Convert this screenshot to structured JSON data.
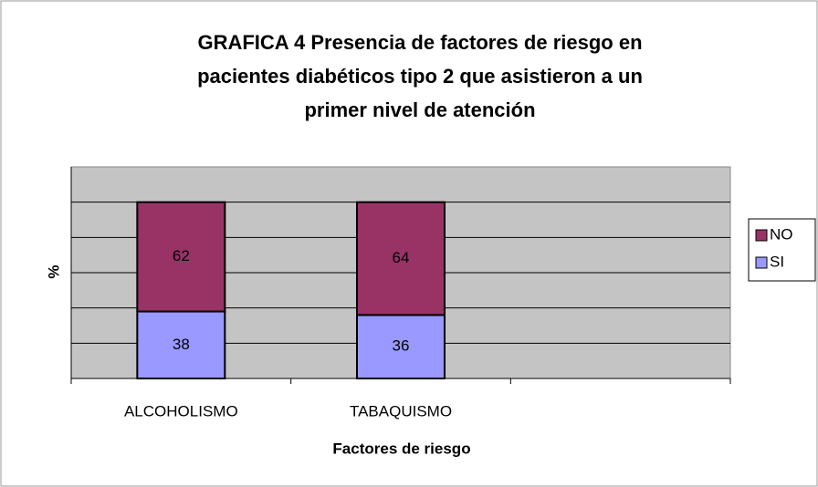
{
  "chart_data": {
    "type": "stacked_bar",
    "title": [
      "GRAFICA 4 Presencia de factores de riesgo en",
      "pacientes diabéticos tipo 2 que asistieron a un",
      "primer nivel de atención"
    ],
    "categories": [
      "ALCOHOLISMO",
      "TABAQUISMO",
      null
    ],
    "series": [
      {
        "name": "SI",
        "color": "#9999ff",
        "values": [
          38,
          36,
          null
        ]
      },
      {
        "name": "NO",
        "color": "#993366",
        "values": [
          62,
          64,
          null
        ]
      }
    ],
    "ylim": [
      0,
      120
    ],
    "yticks": [
      20,
      40,
      60,
      80,
      100
    ],
    "ytick_labels": false,
    "grid": true,
    "ylabel": "%",
    "xlabel": "Factores de riesgo",
    "legend": "right"
  }
}
